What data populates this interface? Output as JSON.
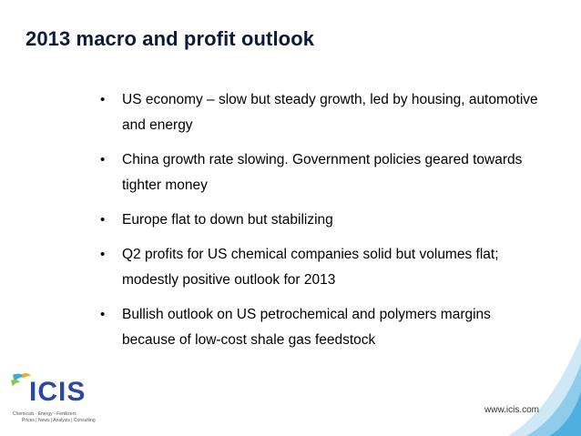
{
  "slide": {
    "title": "2013 macro and profit outlook",
    "bullets": [
      {
        "text": "US economy – slow but steady growth, led by housing, automotive and energy"
      },
      {
        "text": "China growth rate slowing. Government policies geared towards tighter money"
      },
      {
        "text": "Europe flat to down but stabilizing"
      },
      {
        "text": "Q2 profits for US chemical companies solid but volumes flat; modestly positive outlook for 2013"
      },
      {
        "text": "Bullish outlook on US petrochemical and polymers margins because of low-cost shale gas feedstock"
      }
    ],
    "bullet_symbol": "•"
  },
  "footer": {
    "logo_text": "ICIS",
    "logo_tagline_1": "Chemicals · Energy · Fertilizers",
    "logo_tagline_2": "Prices | News | Analysis | Consulting",
    "url": "www.icis.com"
  },
  "colors": {
    "title": "#0d1a3a",
    "logo_blue": "#2b4a9b",
    "accent_light_blue": "#cfe8f6",
    "accent_mid_blue": "#8fcbea"
  }
}
